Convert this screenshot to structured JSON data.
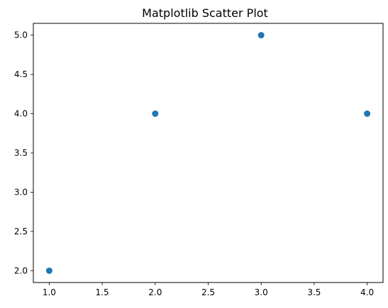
{
  "chart_data": {
    "type": "scatter",
    "title": "Matplotlib Scatter Plot",
    "xlabel": "",
    "ylabel": "",
    "x": [
      1,
      2,
      3,
      4
    ],
    "y": [
      2,
      4,
      5,
      4
    ],
    "xlim": [
      0.85,
      4.15
    ],
    "ylim": [
      1.85,
      5.15
    ],
    "xticks": [
      1.0,
      1.5,
      2.0,
      2.5,
      3.0,
      3.5,
      4.0
    ],
    "xtick_labels": [
      "1.0",
      "1.5",
      "2.0",
      "2.5",
      "3.0",
      "3.5",
      "4.0"
    ],
    "yticks": [
      2.0,
      2.5,
      3.0,
      3.5,
      4.0,
      4.5,
      5.0
    ],
    "ytick_labels": [
      "2.0",
      "2.5",
      "3.0",
      "3.5",
      "4.0",
      "4.5",
      "5.0"
    ],
    "grid": false,
    "legend": false,
    "marker_color": "#1f77b4"
  }
}
